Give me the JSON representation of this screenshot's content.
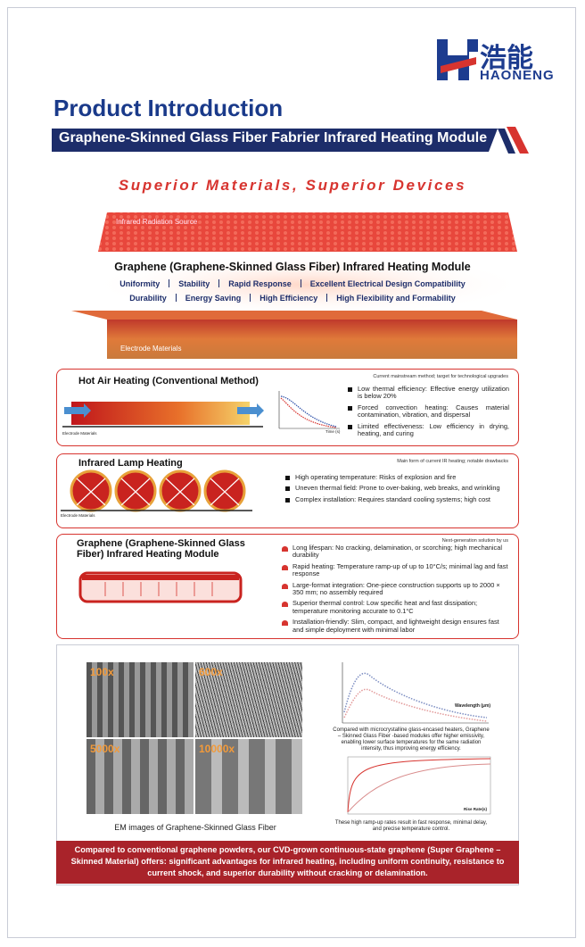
{
  "logo": {
    "brand_cn": "浩能",
    "brand_en": "HAONENG"
  },
  "header": {
    "title": "Product Introduction",
    "subtitle": "Graphene-Skinned Glass Fiber Fabrier Infrared Heating Module"
  },
  "tagline": "Superior Materials, Superior Devices",
  "hero": {
    "top_layer": "Infrared Radiation Source",
    "bottom_layer": "Electrode Materials",
    "module_title": "Graphene (Graphene-Skinned Glass Fiber) Infrared Heating Module",
    "features_row1": [
      "Uniformity",
      "Stability",
      "Rapid Response",
      "Excellent Electrical Design Compatibility"
    ],
    "features_row2": [
      "Durability",
      "Energy Saving",
      "High Efficiency",
      "High Flexibility and Formability"
    ]
  },
  "cards": [
    {
      "title": "Hot Air Heating (Conventional Method)",
      "note": "Current mainstream method; target for technological upgrades",
      "diagram_label": "Electrode Materials",
      "chart_axis": "Time (s)",
      "bullets": [
        "Low thermal efficiency: Effective energy utilization is below 20%",
        "Forced convection heating: Causes material contamination, vibration, and dispersal",
        "Limited effectiveness: Low efficiency in drying, heating, and curing"
      ]
    },
    {
      "title": "Infrared Lamp Heating",
      "note": "Main form of current IR heating; notable drawbacks",
      "diagram_label": "Electrode Materials",
      "bullets": [
        "High operating temperature: Risks of explosion and fire",
        "Uneven thermal field: Prone to over-baking, web breaks, and wrinkling",
        "Complex installation: Requires standard cooling systems; high cost"
      ]
    },
    {
      "title": "Graphene (Graphene-Skinned Glass Fiber) Infrared Heating Module",
      "note": "Next-generation solution by us",
      "bullets": [
        "Long lifespan: No cracking, delamination, or scorching; high mechanical durability",
        "Rapid heating: Temperature ramp-up of up to 10°C/s; minimal lag and fast response",
        "Large-format integration: One-piece construction supports up to 2000 × 350 mm; no assembly required",
        "Superior thermal control: Low specific heat and fast dissipation; temperature monitoring accurate to 0.1°C",
        "Installation-friendly: Slim, compact, and lightweight design ensures fast and simple deployment with minimal labor"
      ]
    }
  ],
  "em": {
    "magnifications": [
      "100x",
      "600x",
      "5000x",
      "10000x"
    ],
    "caption": "EM images of Graphene-Skinned Glass Fiber",
    "chart1_axis": "Wavelength (μm)",
    "chart1_caption": "Compared with microcrystalline glass-encased heaters, Graphene – Skinned Glass Fiber -based modules offer higher emissivity, enabling lower surface temperatures for the same radiation intensity, thus improving energy efficiency.",
    "chart2_axis": "Rise Rate(s)",
    "chart2_caption": "These high ramp-up rates result in fast response, minimal delay, and precise temperature control."
  },
  "footer": "Compared to conventional graphene powders, our CVD-grown continuous-state graphene (Super Graphene – Skinned Material) offers: significant advantages for infrared heating, including uniform continuity, resistance to current shock, and superior durability without cracking or delamination."
}
